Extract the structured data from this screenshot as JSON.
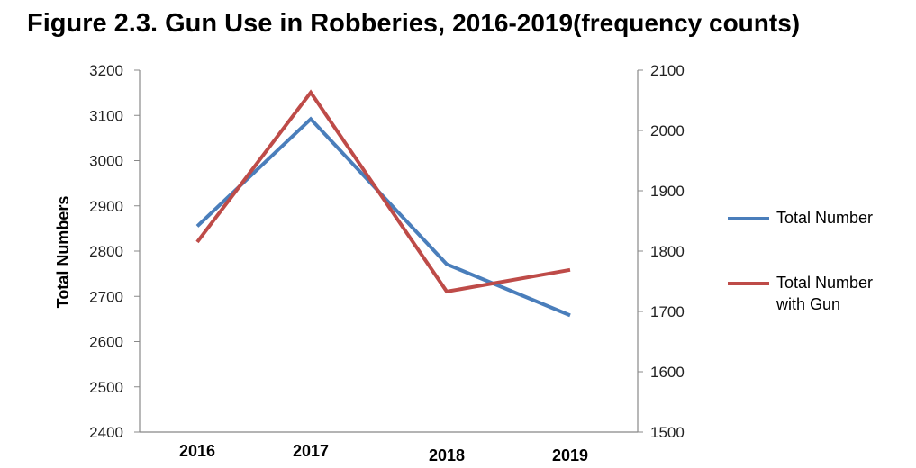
{
  "title": {
    "part1": "Figure 2.3. Gun Use in Robberies,",
    "part2": "2016-2019(frequency counts)"
  },
  "chart_data": {
    "type": "line",
    "categories": [
      "2016",
      "2017",
      "2018",
      "2019"
    ],
    "ylabel": "Total Numbers",
    "y_left_ticks": [
      "2400",
      "2500",
      "2600",
      "2700",
      "2800",
      "2900",
      "3000",
      "3100",
      "3200"
    ],
    "y_right_ticks": [
      "1500",
      "1600",
      "1700",
      "1800",
      "1900",
      "2000",
      "2100"
    ],
    "ylim_left": [
      2400,
      3200
    ],
    "ylim_right": [
      1500,
      2100
    ],
    "series": [
      {
        "name": "Total Number",
        "axis": "left",
        "color": "#4a7ebb",
        "values": [
          2855,
          3092,
          2771,
          2658
        ]
      },
      {
        "name": "Total Number with Gun",
        "axis": "right",
        "color": "#be4b48",
        "values": [
          1815,
          2063,
          1733,
          1769
        ]
      }
    ],
    "grid": false,
    "legend_position": "right"
  }
}
